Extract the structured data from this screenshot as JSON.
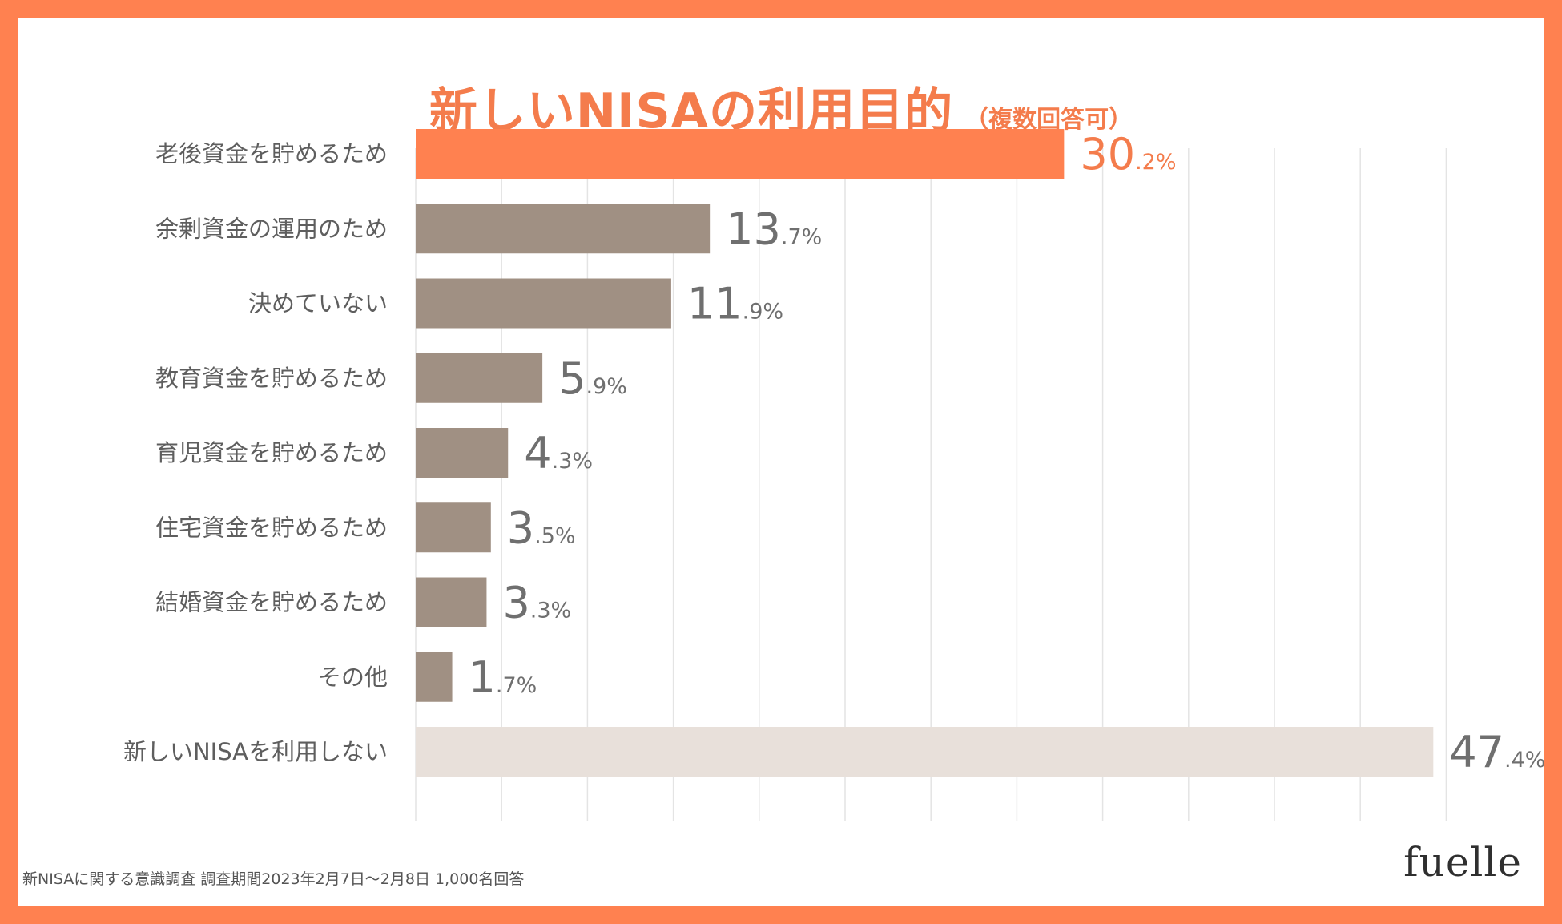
{
  "title": "新しいNISAの利用目的",
  "subtitle": "（複数回答可）",
  "chart_data": {
    "type": "bar",
    "orientation": "horizontal",
    "title": "新しいNISAの利用目的（複数回答可）",
    "unit": "%",
    "xlim": [
      0,
      50
    ],
    "grid": true,
    "categories": [
      "老後資金を貯めるため",
      "余剰資金の運用のため",
      "決めていない",
      "教育資金を貯めるため",
      "育児資金を貯めるため",
      "住宅資金を貯めるため",
      "結婚資金を貯めるため",
      "その他",
      "新しいNISAを利用しない"
    ],
    "values": [
      30.2,
      13.7,
      11.9,
      5.9,
      4.3,
      3.5,
      3.3,
      1.7,
      47.4
    ],
    "value_labels": [
      {
        "int": "30",
        "dec": ".2%"
      },
      {
        "int": "13",
        "dec": ".7%"
      },
      {
        "int": "11",
        "dec": ".9%"
      },
      {
        "int": "5",
        "dec": ".9%"
      },
      {
        "int": "4",
        "dec": ".3%"
      },
      {
        "int": "3",
        "dec": ".5%"
      },
      {
        "int": "3",
        "dec": ".3%"
      },
      {
        "int": "1",
        "dec": ".7%"
      },
      {
        "int": "47",
        "dec": ".4%"
      }
    ],
    "bar_colors": [
      "#ff8150",
      "#a09083",
      "#a09083",
      "#a09083",
      "#a09083",
      "#a09083",
      "#a09083",
      "#a09083",
      "#e8e0da"
    ],
    "label_colors": [
      "#f47c4c",
      "#6f6f6f",
      "#6f6f6f",
      "#6f6f6f",
      "#6f6f6f",
      "#6f6f6f",
      "#6f6f6f",
      "#6f6f6f",
      "#6f6f6f"
    ]
  },
  "footnote": "新NISAに関する意識調査 調査期間2023年2月7日〜2月8日 1,000名回答",
  "logo": "fuelle"
}
